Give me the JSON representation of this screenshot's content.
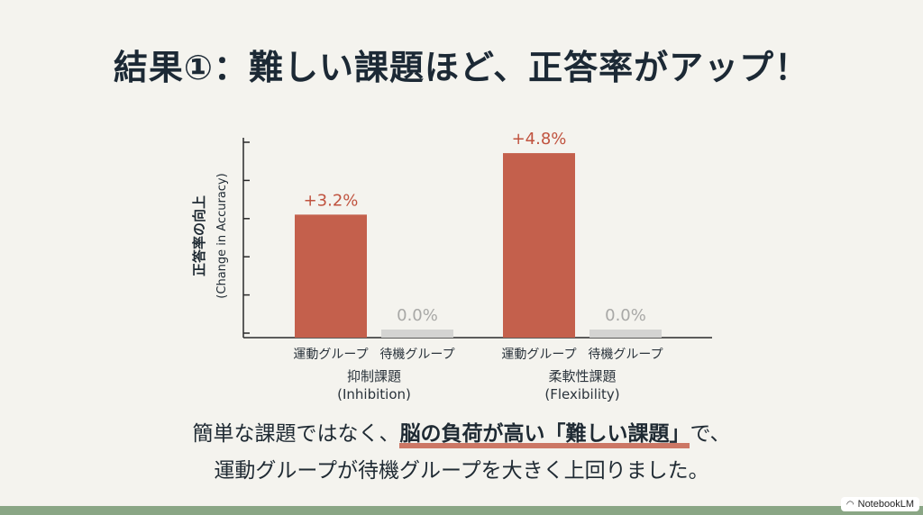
{
  "slide": {
    "title": "結果①：難しい課題ほど、正答率がアップ！",
    "caption_line1_prefix": "簡単な課題ではなく、",
    "caption_line1_emphasis": "脳の負荷が高い「難しい課題」",
    "caption_line1_suffix": "で、",
    "caption_line2": "運動グループが待機グループを大きく上回りました。",
    "badge_text": "NotebookLM",
    "badge_icon": "notebooklm-logo-icon"
  },
  "colors": {
    "exercise": "#c4604c",
    "waiting": "#d4d4d2",
    "exercise_label": "#c0533f",
    "waiting_label": "#a8a8a6",
    "axis": "#2a2a2a"
  },
  "chart_data": {
    "type": "bar",
    "ylabel_line1": "正答率の向上",
    "ylabel_line2": "(Change in Accuracy)",
    "ylim": [
      0,
      5.2
    ],
    "groups": [
      {
        "name": "抑制課題",
        "sub": "(Inhibition)"
      },
      {
        "name": "柔軟性課題",
        "sub": "(Flexibility)"
      }
    ],
    "series": [
      {
        "name": "運動グループ",
        "values": [
          3.2,
          4.8
        ],
        "labels": [
          "+3.2%",
          "+4.8%"
        ]
      },
      {
        "name": "待機グループ",
        "values": [
          0.0,
          0.0
        ],
        "labels": [
          "0.0%",
          "0.0%"
        ]
      }
    ],
    "grid": false,
    "y_tick_count": 6
  }
}
